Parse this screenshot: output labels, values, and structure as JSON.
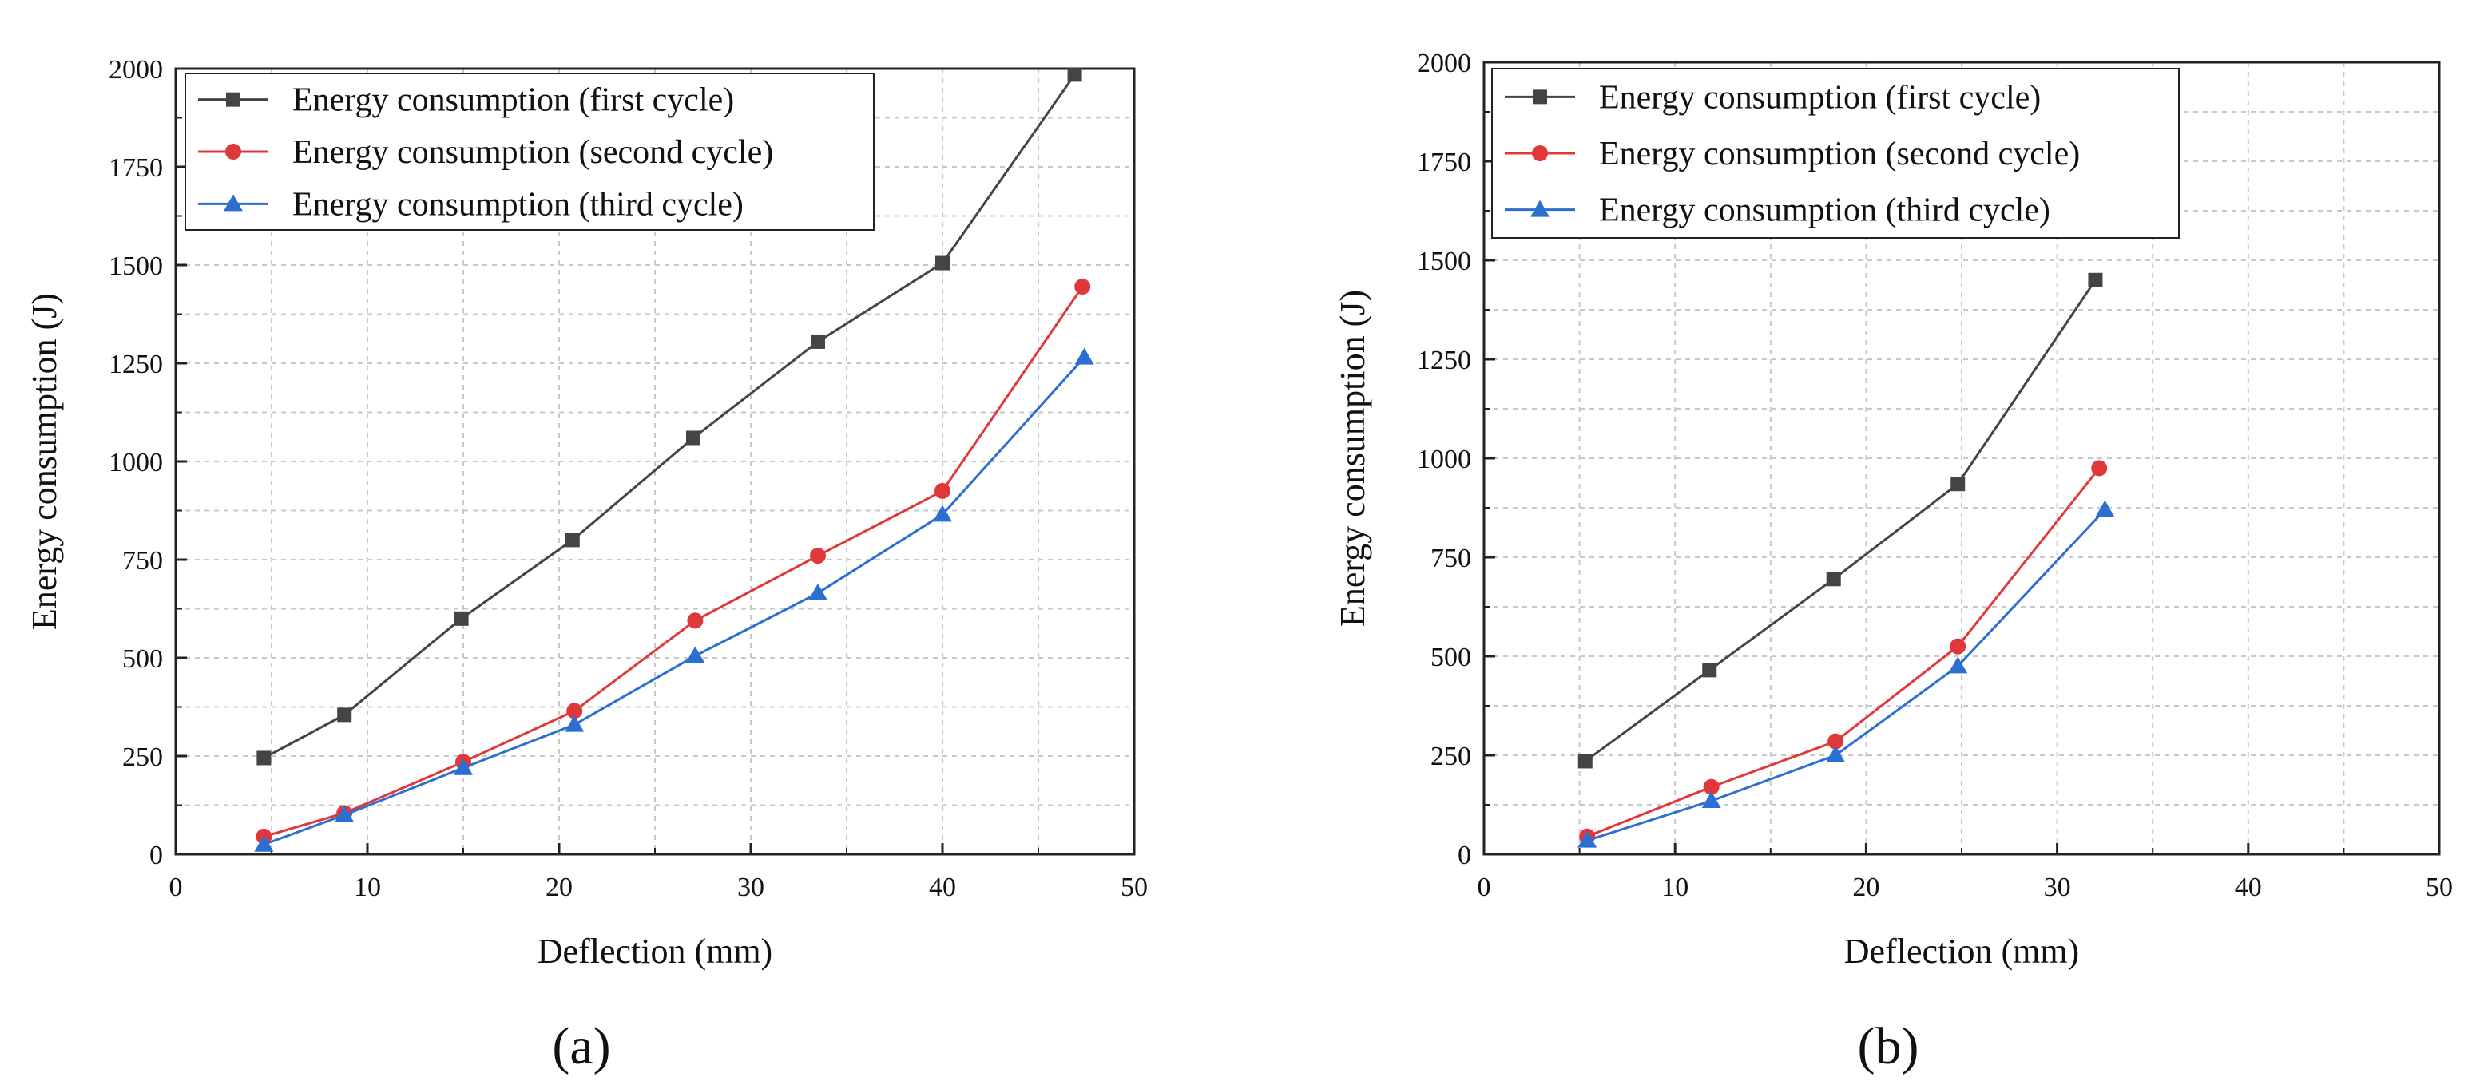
{
  "figure": {
    "panel_labels": [
      "(a)",
      "(b)"
    ]
  },
  "colors": {
    "first": "#444444",
    "second": "#e0383a",
    "third": "#2b6fd0",
    "grid": "#c8c8c8",
    "axis": "#222222"
  },
  "chart_data": [
    {
      "type": "line",
      "panel": "(a)",
      "title": "",
      "xlabel": "Deflection (mm)",
      "ylabel": "Energy consumption (J)",
      "xlim": [
        0,
        50
      ],
      "ylim": [
        0,
        2000
      ],
      "xticks": [
        0,
        10,
        20,
        30,
        40,
        50
      ],
      "yticks": [
        0,
        250,
        500,
        750,
        1000,
        1250,
        1500,
        1750,
        2000
      ],
      "grid": true,
      "legend_position": "top-left",
      "series": [
        {
          "name": "Energy consumption (first cycle)",
          "marker": "square",
          "color_key": "first",
          "x": [
            4.6,
            8.8,
            14.9,
            20.7,
            27.0,
            33.5,
            40.0,
            46.9
          ],
          "y": [
            245,
            355,
            600,
            800,
            1060,
            1305,
            1505,
            1985
          ]
        },
        {
          "name": "Energy consumption (second cycle)",
          "marker": "circle",
          "color_key": "second",
          "x": [
            4.6,
            8.8,
            15.0,
            20.8,
            27.1,
            33.5,
            40.0,
            47.3
          ],
          "y": [
            45,
            105,
            235,
            365,
            595,
            760,
            925,
            1445
          ]
        },
        {
          "name": "Energy consumption (third cycle)",
          "marker": "triangle",
          "color_key": "third",
          "x": [
            4.6,
            8.8,
            15.0,
            20.8,
            27.1,
            33.5,
            40.0,
            47.4
          ],
          "y": [
            25,
            100,
            220,
            330,
            505,
            665,
            865,
            1265
          ]
        }
      ]
    },
    {
      "type": "line",
      "panel": "(b)",
      "title": "",
      "xlabel": "Deflection (mm)",
      "ylabel": "Energy consumption (J)",
      "xlim": [
        0,
        50
      ],
      "ylim": [
        0,
        2000
      ],
      "xticks": [
        0,
        10,
        20,
        30,
        40,
        50
      ],
      "yticks": [
        0,
        250,
        500,
        750,
        1000,
        1250,
        1500,
        1750,
        2000
      ],
      "grid": true,
      "legend_position": "top-left",
      "series": [
        {
          "name": "Energy consumption (first cycle)",
          "marker": "square",
          "color_key": "first",
          "x": [
            5.3,
            11.8,
            18.3,
            24.8,
            32.0
          ],
          "y": [
            235,
            465,
            695,
            935,
            1450
          ]
        },
        {
          "name": "Energy consumption (second cycle)",
          "marker": "circle",
          "color_key": "second",
          "x": [
            5.4,
            11.9,
            18.4,
            24.8,
            32.2
          ],
          "y": [
            45,
            170,
            285,
            525,
            975
          ]
        },
        {
          "name": "Energy consumption (third cycle)",
          "marker": "triangle",
          "color_key": "third",
          "x": [
            5.4,
            11.9,
            18.4,
            24.8,
            32.5
          ],
          "y": [
            35,
            135,
            250,
            475,
            870
          ]
        }
      ]
    }
  ]
}
